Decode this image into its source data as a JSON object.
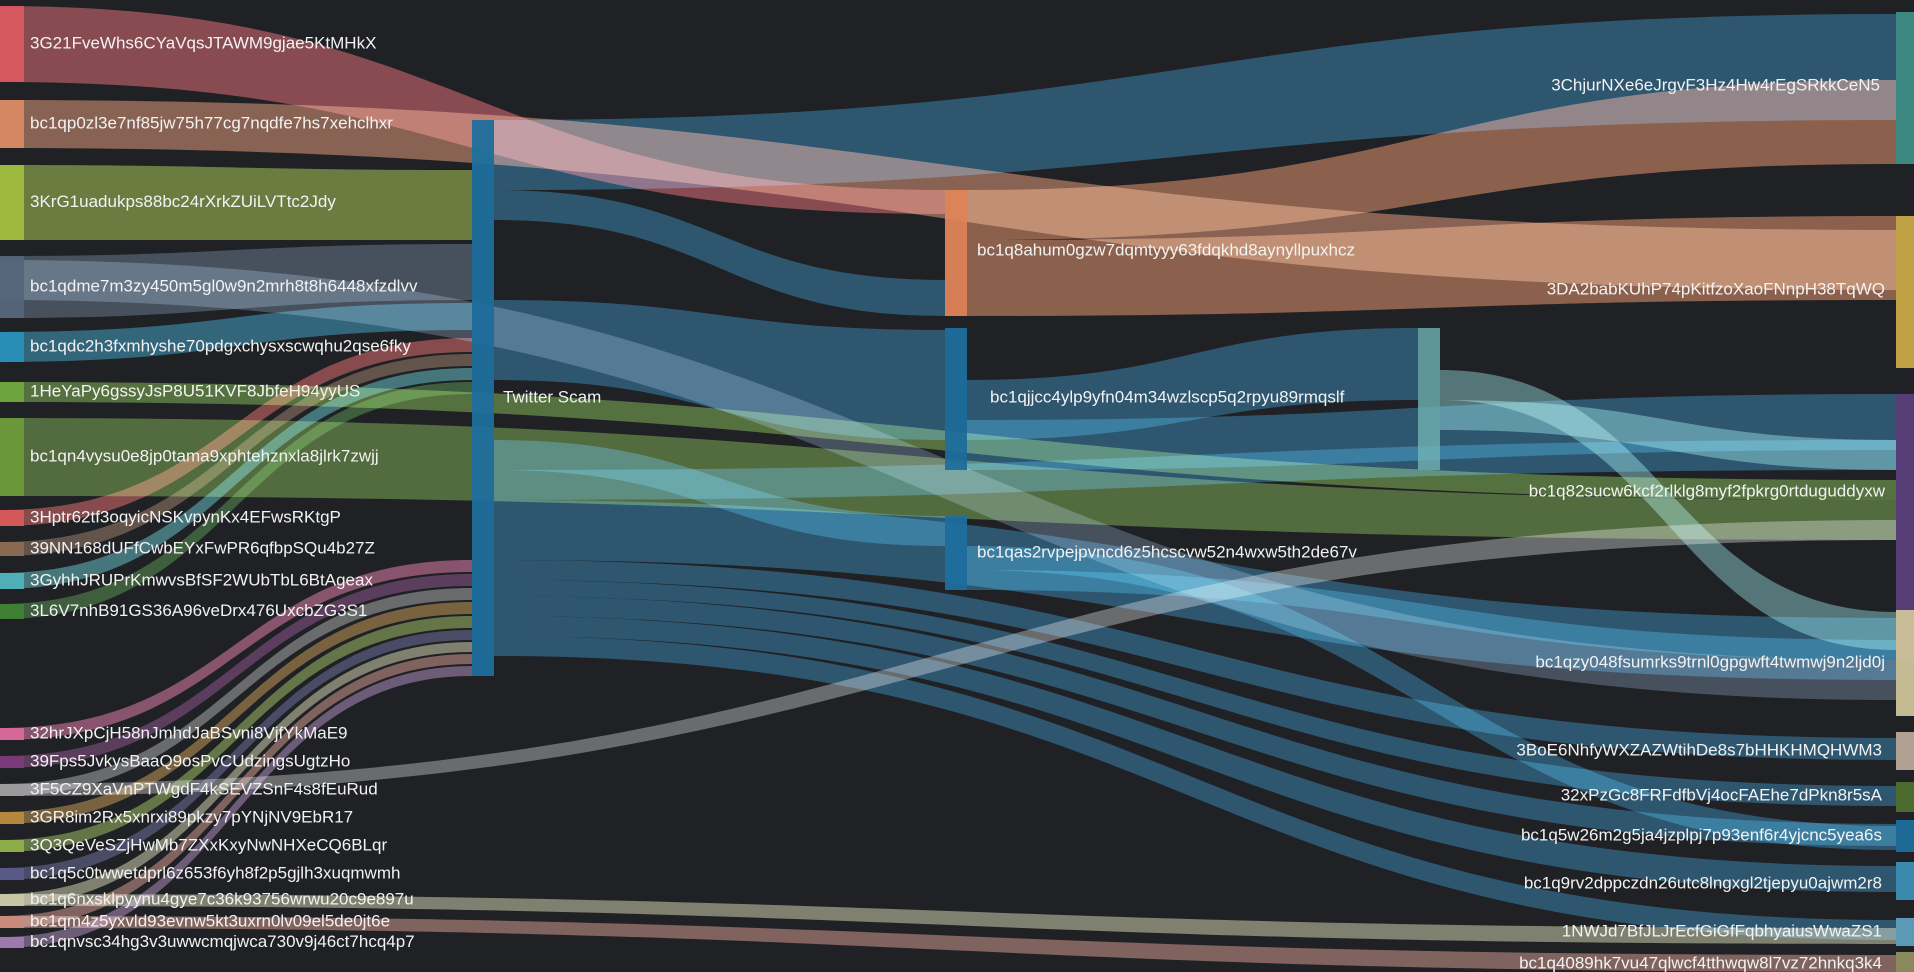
{
  "diagram": {
    "type": "sankey",
    "nodes": [
      {
        "id": "s1",
        "label": "3G21FveWhs6CYaVqsJTAWM9gjae5KtMHkX",
        "color": "#d8585e",
        "column": 0
      },
      {
        "id": "s2",
        "label": "bc1qp0zl3e7nf85jw75h77cg7nqdfe7hs7xehclhxr",
        "color": "#d98863",
        "column": 0
      },
      {
        "id": "s3",
        "label": "3KrG1uadukps88bc24rXrkZUiLVTtc2Jdy",
        "color": "#9fbd3e",
        "column": 0
      },
      {
        "id": "s4",
        "label": "bc1qdme7m3zy450m5gl0w9n2mrh8t8h6448xfzdlvv",
        "color": "#54657a",
        "column": 0
      },
      {
        "id": "s5",
        "label": "bc1qdc2h3fxmhyshe70pdgxchysxscwqhu2qse6fky",
        "color": "#2a8fb8",
        "column": 0
      },
      {
        "id": "s6",
        "label": "1HeYaPy6gssyJsP8U51KVF8JbfeH94yyUS",
        "color": "#6fa83c",
        "column": 0
      },
      {
        "id": "s7",
        "label": "bc1qn4vysu0e8jp0tama9xphtehznxla8jlrk7zwjj",
        "color": "#6a9a3a",
        "column": 0
      },
      {
        "id": "s8",
        "label": "3Hptr62tf3oqyicNSKvpynKx4EFwsRKtgP",
        "color": "#d7585a",
        "column": 0
      },
      {
        "id": "s9",
        "label": "39NN168dUFfCwbEYxFwPR6qfbpSQu4b27Z",
        "color": "#8a6a52",
        "column": 0
      },
      {
        "id": "s10",
        "label": "3GyhhJRUPrKmwvsBfSF2WUbTbL6BtAgeax",
        "color": "#4fb2b9",
        "column": 0
      },
      {
        "id": "s11",
        "label": "3L6V7nhB91GS36A96veDrx476UxcbZG3S1",
        "color": "#3f7f35",
        "column": 0
      },
      {
        "id": "s12",
        "label": "32hrJXpCjH58nJmhdJaBSvni8VjfYkMaE9",
        "color": "#d9699a",
        "column": 0
      },
      {
        "id": "s13",
        "label": "39Fps5JvkysBaaQ9osPvCUdzingsUgtzHo",
        "color": "#7b3a78",
        "column": 0
      },
      {
        "id": "s14",
        "label": "3F5CZ9XaVnPTWgdF4kSEVZSnF4s8fEuRud",
        "color": "#9b9b9b",
        "column": 0
      },
      {
        "id": "s15",
        "label": "3GR8im2Rx5xnrxi89pkzy7pYNjNV9EbR17",
        "color": "#b8893c",
        "column": 0
      },
      {
        "id": "s16",
        "label": "3Q3QeVeSZjHwMb7ZXxKxyNwNHXeCQ6BLqr",
        "color": "#8fb04a",
        "column": 0
      },
      {
        "id": "s17",
        "label": "bc1q5c0twwetdprl6z653f6yh8f2p5gjlh3xuqmwmh",
        "color": "#5a5a8a",
        "column": 0
      },
      {
        "id": "s18",
        "label": "bc1q6nxsklpyynu4gye7c36k93756wrwu20c9e897u",
        "color": "#c7c7a3",
        "column": 0
      },
      {
        "id": "s19",
        "label": "bc1qm4z5yxvld93evnw5kt3uxrn0lv09el5de0jt6e",
        "color": "#c88a7a",
        "column": 0
      },
      {
        "id": "s20",
        "label": "bc1qnvsc34hg3v3uwwcmqjwca730v9j46ct7hcq4p7",
        "color": "#a07bb0",
        "column": 0
      },
      {
        "id": "hub",
        "label": "Twitter Scam",
        "color": "#1f6f9e",
        "column": 1
      },
      {
        "id": "m1",
        "label": "bc1q8ahum0gzw7dqmtyyy63fdqkhd8aynyllpuxhcz",
        "color": "#e0855a",
        "column": 2
      },
      {
        "id": "m2",
        "label": "bc1qjjcc4ylp9yfn04m34wzlscp5q2rpyu89rmqslf",
        "color": "#1f6f9e",
        "column": 2
      },
      {
        "id": "m3",
        "label": "bc1qas2rvpejpvncd6z5hcscvw52n4wxw5th2de67v",
        "color": "#1f6f9e",
        "column": 2
      },
      {
        "id": "m4",
        "label": "",
        "color": "#6fb3b3",
        "column": 3
      },
      {
        "id": "t1",
        "label": "3ChjurNXe6eJrgvF3Hz4Hw4rEgSRkkCeN5",
        "color": "#3f8f88",
        "column": 4
      },
      {
        "id": "t2",
        "label": "3DA2babKUhP74pKitfzoXaoFNnpH38TqWQ",
        "color": "#c9a848",
        "column": 4
      },
      {
        "id": "t3",
        "label": "bc1q82sucw6kcf2rlklg8myf2fpkrg0rtduguddyxw",
        "color": "#5a3f7a",
        "column": 4
      },
      {
        "id": "t4",
        "label": "bc1qzy048fsumrks9trnl0gpgwft4twmwj9n2ljd0j",
        "color": "#cfc49a",
        "column": 4
      },
      {
        "id": "t5",
        "label": "3BoE6NhfyWXZAZWtihDe8s7bHHKHMQHWM3",
        "color": "#b9a99a",
        "column": 4
      },
      {
        "id": "t6",
        "label": "32xPzGc8FRFdfbVj4ocFAEhe7dPkn8r5sA",
        "color": "#4f6f2f",
        "column": 4
      },
      {
        "id": "t7",
        "label": "bc1q5w26m2g5ja4jzplpj7p93enf6r4yjcnc5yea6s",
        "color": "#1f6f9e",
        "column": 4
      },
      {
        "id": "t8",
        "label": "bc1q9rv2dppczdn26utc8lngxgl2tjepyu0ajwm2r8",
        "color": "#3b8fb5",
        "column": 4
      },
      {
        "id": "t9",
        "label": "1NWJd7BfJLJrEcfGiGfFqbhyaiusWwaZS1",
        "color": "#5fa0c0",
        "column": 4
      },
      {
        "id": "t10",
        "label": "bc1q4089hk7vu47qlwcf4tthwqw8l7vz72hnkq3k4",
        "color": "#8f8f5f",
        "column": 4
      }
    ],
    "links": [
      {
        "source": "s1",
        "target": "m1",
        "color": "#d8585e"
      },
      {
        "source": "s2",
        "target": "t2",
        "color": "#d98863"
      },
      {
        "source": "s3",
        "target": "hub",
        "color": "#9fbd3e"
      },
      {
        "source": "s4",
        "target": "hub",
        "color": "#54657a"
      },
      {
        "source": "s5",
        "target": "hub",
        "color": "#2a8fb8"
      },
      {
        "source": "s6",
        "target": "t3",
        "color": "#6fa83c"
      },
      {
        "source": "s7",
        "target": "t3",
        "color": "#6a9a3a"
      },
      {
        "source": "s8",
        "target": "hub",
        "color": "#d7585a"
      },
      {
        "source": "s9",
        "target": "hub",
        "color": "#8a6a52"
      },
      {
        "source": "s10",
        "target": "hub",
        "color": "#4fb2b9"
      },
      {
        "source": "s11",
        "target": "hub",
        "color": "#3f7f35"
      },
      {
        "source": "s12",
        "target": "hub",
        "color": "#d9699a"
      },
      {
        "source": "s13",
        "target": "hub",
        "color": "#7b3a78"
      },
      {
        "source": "s14",
        "target": "hub",
        "color": "#9b9b9b"
      },
      {
        "source": "s15",
        "target": "hub",
        "color": "#b8893c"
      },
      {
        "source": "s16",
        "target": "hub",
        "color": "#8fb04a"
      },
      {
        "source": "s17",
        "target": "hub",
        "color": "#5a5a8a"
      },
      {
        "source": "s18",
        "target": "hub",
        "color": "#c7c7a3"
      },
      {
        "source": "s19",
        "target": "hub",
        "color": "#c88a7a"
      },
      {
        "source": "s20",
        "target": "hub",
        "color": "#a07bb0"
      },
      {
        "source": "hub",
        "target": "t1",
        "color": "#1f6f9e"
      },
      {
        "source": "hub",
        "target": "m1",
        "color": "#1f6f9e"
      },
      {
        "source": "hub",
        "target": "m2",
        "color": "#1f6f9e"
      },
      {
        "source": "hub",
        "target": "m3",
        "color": "#1f6f9e"
      },
      {
        "source": "hub",
        "target": "t3",
        "color": "#1f6f9e"
      },
      {
        "source": "hub",
        "target": "t4",
        "color": "#1f6f9e"
      },
      {
        "source": "hub",
        "target": "t5",
        "color": "#1f6f9e"
      },
      {
        "source": "hub",
        "target": "t6",
        "color": "#1f6f9e"
      },
      {
        "source": "hub",
        "target": "t7",
        "color": "#1f6f9e"
      },
      {
        "source": "hub",
        "target": "t8",
        "color": "#1f6f9e"
      },
      {
        "source": "hub",
        "target": "t9",
        "color": "#1f6f9e"
      },
      {
        "source": "m1",
        "target": "t1",
        "color": "#e0855a"
      },
      {
        "source": "m1",
        "target": "t2",
        "color": "#e0855a"
      },
      {
        "source": "m2",
        "target": "m4",
        "color": "#1f6f9e"
      },
      {
        "source": "m2",
        "target": "t3",
        "color": "#1f6f9e"
      },
      {
        "source": "m4",
        "target": "t4",
        "color": "#6fb3b3"
      },
      {
        "source": "m4",
        "target": "t3",
        "color": "#6fb3b3"
      },
      {
        "source": "m3",
        "target": "t7",
        "color": "#1f6f9e"
      },
      {
        "source": "m3",
        "target": "t4",
        "color": "#1f6f9e"
      },
      {
        "source": "s4",
        "target": "t4",
        "color": "#54657a"
      },
      {
        "source": "s14",
        "target": "t3",
        "color": "#9b9b9b"
      },
      {
        "source": "s18",
        "target": "t9",
        "color": "#c7c7a3"
      },
      {
        "source": "s19",
        "target": "t10",
        "color": "#c88a7a"
      }
    ]
  }
}
